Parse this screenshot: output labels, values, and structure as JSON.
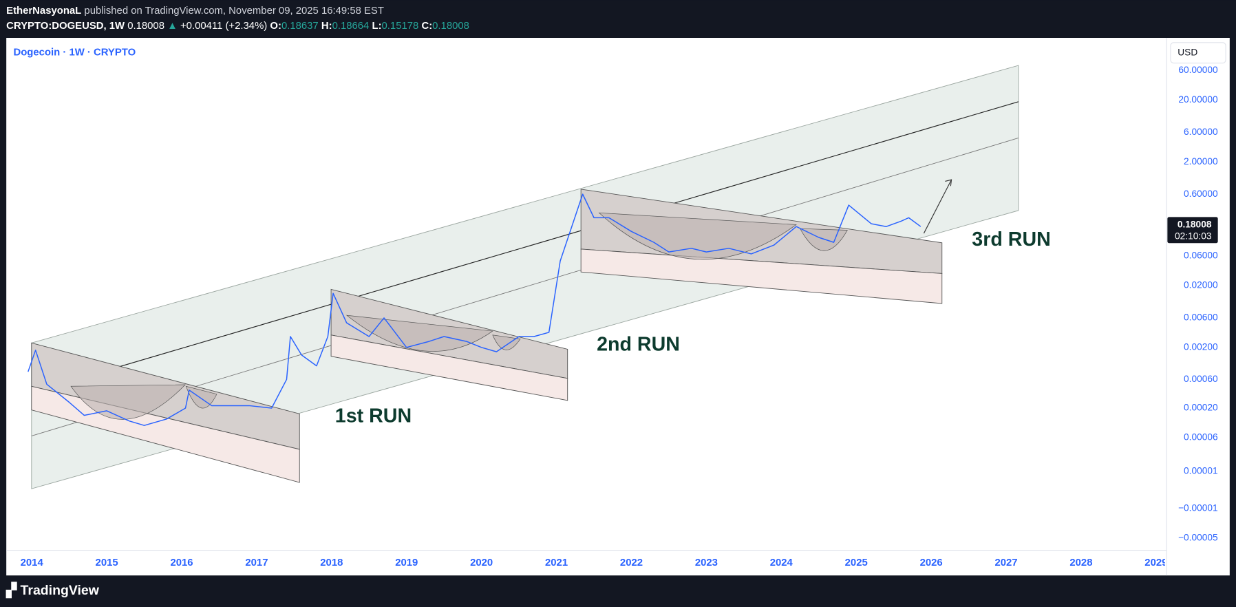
{
  "header": {
    "author": "EtherNasyonaL",
    "published": "published on TradingView.com, November 09, 2025 16:49:58 EST"
  },
  "symbol_bar": {
    "symbol": "CRYPTO:DOGEUSD, 1W",
    "last": "0.18008",
    "arrow": "▲",
    "change": "+0.00411 (+2.34%)",
    "ohlc": [
      {
        "key": "O:",
        "value": "0.18637"
      },
      {
        "key": "H:",
        "value": "0.18664"
      },
      {
        "key": "L:",
        "value": "0.15178"
      },
      {
        "key": "C:",
        "value": "0.18008"
      }
    ]
  },
  "footer": {
    "brand": "TradingView"
  },
  "chart_data": {
    "type": "line",
    "title": "Dogecoin · 1W · CRYPTO",
    "currency": "USD",
    "last_price": 0.18008,
    "countdown": "02:10:03",
    "annotations": [
      "1st RUN",
      "2nd RUN",
      "3rd RUN"
    ],
    "log_scale": true,
    "grid": false,
    "color": "#2962ff",
    "x": [
      2013.95,
      2014.05,
      2014.2,
      2014.5,
      2014.7,
      2015.0,
      2015.3,
      2015.5,
      2015.8,
      2016.05,
      2016.1,
      2016.4,
      2016.9,
      2017.2,
      2017.4,
      2017.45,
      2017.6,
      2017.8,
      2017.95,
      2018.02,
      2018.2,
      2018.5,
      2018.7,
      2019.0,
      2019.3,
      2019.5,
      2019.8,
      2020.0,
      2020.2,
      2020.5,
      2020.7,
      2020.9,
      2021.05,
      2021.35,
      2021.5,
      2021.7,
      2022.0,
      2022.3,
      2022.5,
      2022.8,
      2023.0,
      2023.3,
      2023.6,
      2023.9,
      2024.2,
      2024.5,
      2024.7,
      2024.9,
      2025.2,
      2025.4,
      2025.6,
      2025.7,
      2025.86
    ],
    "values": [
      0.0008,
      0.0018,
      0.0005,
      0.00025,
      0.00015,
      0.00018,
      0.00012,
      0.0001,
      0.00013,
      0.0002,
      0.0004,
      0.00022,
      0.00022,
      0.0002,
      0.0006,
      0.003,
      0.0015,
      0.001,
      0.003,
      0.015,
      0.005,
      0.003,
      0.006,
      0.002,
      0.0025,
      0.003,
      0.0025,
      0.002,
      0.0017,
      0.003,
      0.003,
      0.0035,
      0.05,
      0.6,
      0.25,
      0.25,
      0.15,
      0.1,
      0.07,
      0.08,
      0.07,
      0.08,
      0.065,
      0.09,
      0.18,
      0.12,
      0.1,
      0.4,
      0.2,
      0.18,
      0.22,
      0.25,
      0.18008
    ],
    "xlim": [
      2013.66,
      2029.12
    ],
    "xticks": [
      2014,
      2015,
      2016,
      2017,
      2018,
      2019,
      2020,
      2021,
      2022,
      2023,
      2024,
      2025,
      2026,
      2027,
      2028,
      2029
    ],
    "ylim": [
      -9e-05,
      190
    ],
    "yticks": [
      {
        "value": 60,
        "label": "60.00000"
      },
      {
        "value": 20,
        "label": "20.00000"
      },
      {
        "value": 6,
        "label": "6.00000"
      },
      {
        "value": 2,
        "label": "2.00000"
      },
      {
        "value": 0.6,
        "label": "0.60000"
      },
      {
        "value": 0.06,
        "label": "0.06000"
      },
      {
        "value": 0.02,
        "label": "0.02000"
      },
      {
        "value": 0.006,
        "label": "0.00600"
      },
      {
        "value": 0.002,
        "label": "0.00200"
      },
      {
        "value": 0.0006,
        "label": "0.00060"
      },
      {
        "value": 0.0002,
        "label": "0.00020"
      },
      {
        "value": 6e-05,
        "label": "0.00006"
      },
      {
        "value": 1e-05,
        "label": "0.00001"
      },
      {
        "value": -1e-05,
        "label": "−0.00001"
      },
      {
        "value": -5e-05,
        "label": "−0.00005"
      }
    ]
  }
}
